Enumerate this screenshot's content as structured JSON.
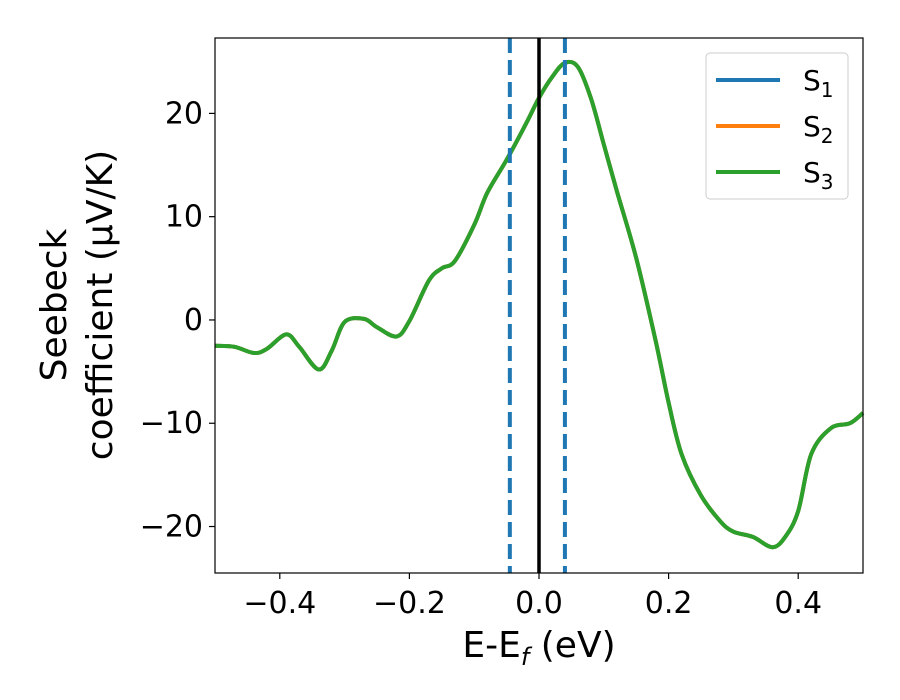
{
  "chart_data": {
    "type": "line",
    "xlabel": "E-E",
    "xlabel_sub": "f",
    "xlabel_unit": " (eV)",
    "ylabel_line1": "Seebeck",
    "ylabel_line2": "coefficient  (μV/K)",
    "xlim": [
      -0.5,
      0.5
    ],
    "ylim": [
      -24.5,
      27.3
    ],
    "xticks": [
      -0.4,
      -0.2,
      0.0,
      0.2,
      0.4
    ],
    "xtick_labels": [
      "−0.4",
      "−0.2",
      "0.0",
      "0.2",
      "0.4"
    ],
    "yticks": [
      -20,
      -10,
      0,
      10,
      20
    ],
    "ytick_labels": [
      "−20",
      "−10",
      "0",
      "10",
      "20"
    ],
    "grid": false,
    "legend_position": "top-right",
    "vlines": [
      {
        "x": -0.045,
        "style": "dashed",
        "color": "#1f77b4"
      },
      {
        "x": 0.0,
        "style": "solid",
        "color": "#000000"
      },
      {
        "x": 0.04,
        "style": "dashed",
        "color": "#1f77b4"
      }
    ],
    "x": [
      -0.5,
      -0.47,
      -0.44,
      -0.42,
      -0.39,
      -0.37,
      -0.34,
      -0.32,
      -0.3,
      -0.27,
      -0.25,
      -0.22,
      -0.2,
      -0.17,
      -0.15,
      -0.13,
      -0.1,
      -0.08,
      -0.05,
      -0.02,
      0.0,
      0.02,
      0.04,
      0.06,
      0.08,
      0.1,
      0.12,
      0.15,
      0.18,
      0.2,
      0.22,
      0.25,
      0.28,
      0.3,
      0.33,
      0.36,
      0.38,
      0.4,
      0.42,
      0.45,
      0.48,
      0.5
    ],
    "series": [
      {
        "name": "S",
        "name_sub": "1",
        "color": "#1f77b4",
        "values": [
          -2.5,
          -2.6,
          -3.2,
          -2.8,
          -1.4,
          -2.6,
          -4.8,
          -3.0,
          -0.2,
          0.1,
          -0.7,
          -1.6,
          -0.1,
          3.8,
          5.0,
          5.7,
          9.2,
          12.3,
          15.5,
          19.0,
          21.5,
          23.5,
          24.9,
          24.5,
          21.5,
          17.0,
          12.5,
          6.0,
          -2.0,
          -8.0,
          -13.0,
          -17.0,
          -19.5,
          -20.5,
          -21.0,
          -22.0,
          -21.0,
          -18.5,
          -13.0,
          -10.5,
          -10.0,
          -9.0
        ]
      },
      {
        "name": "S",
        "name_sub": "2",
        "color": "#ff7f0e",
        "values": [
          -2.5,
          -2.6,
          -3.2,
          -2.8,
          -1.4,
          -2.6,
          -4.8,
          -3.0,
          -0.2,
          0.1,
          -0.7,
          -1.6,
          -0.1,
          3.8,
          5.0,
          5.7,
          9.2,
          12.3,
          15.5,
          19.0,
          21.5,
          23.5,
          24.9,
          24.5,
          21.5,
          17.0,
          12.5,
          6.0,
          -2.0,
          -8.0,
          -13.0,
          -17.0,
          -19.5,
          -20.5,
          -21.0,
          -22.0,
          -21.0,
          -18.5,
          -13.0,
          -10.5,
          -10.0,
          -9.0
        ]
      },
      {
        "name": "S",
        "name_sub": "3",
        "color": "#2ca02c",
        "values": [
          -2.5,
          -2.6,
          -3.2,
          -2.8,
          -1.4,
          -2.6,
          -4.8,
          -3.0,
          -0.2,
          0.1,
          -0.7,
          -1.6,
          -0.1,
          3.8,
          5.0,
          5.7,
          9.2,
          12.3,
          15.5,
          19.0,
          21.5,
          23.5,
          24.9,
          24.5,
          21.5,
          17.0,
          12.5,
          6.0,
          -2.0,
          -8.0,
          -13.0,
          -17.0,
          -19.5,
          -20.5,
          -21.0,
          -22.0,
          -21.0,
          -18.5,
          -13.0,
          -10.5,
          -10.0,
          -9.0
        ]
      }
    ]
  }
}
